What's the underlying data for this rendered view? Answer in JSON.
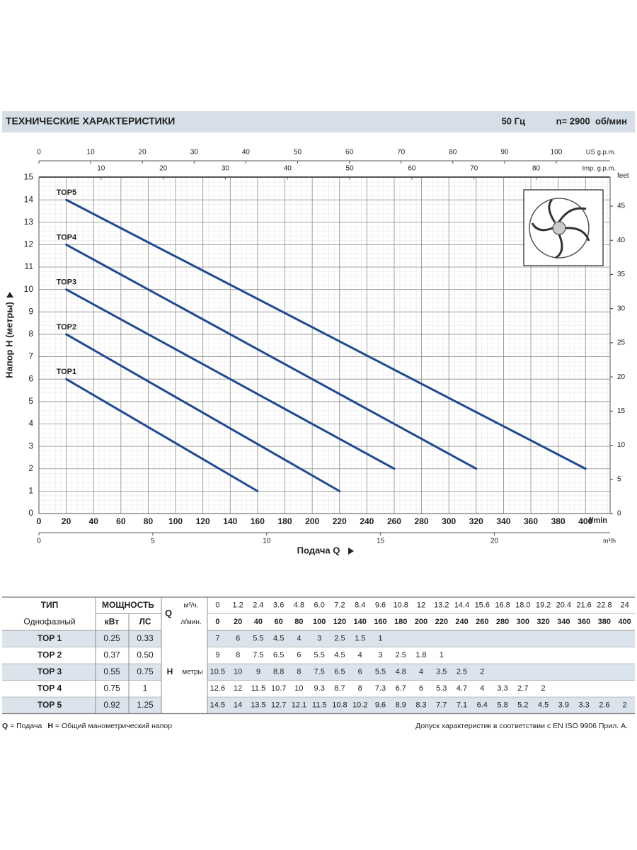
{
  "header": {
    "title": "ТЕХНИЧЕСКИЕ ХАРАКТЕРИСТИКИ",
    "frequency": "50 Гц",
    "speed": "n= 2900  об/мин"
  },
  "chart_data": {
    "type": "line",
    "ylabel": "Напор H (метры)",
    "xlabel": "Подача Q",
    "xunit": "l/min",
    "xlim": [
      0,
      418
    ],
    "xticks": [
      0,
      20,
      40,
      60,
      80,
      100,
      120,
      140,
      160,
      180,
      200,
      220,
      240,
      260,
      280,
      300,
      320,
      340,
      360,
      380,
      400
    ],
    "ylim": [
      0,
      15
    ],
    "yticks": [
      0,
      1,
      2,
      3,
      4,
      5,
      6,
      7,
      8,
      9,
      10,
      11,
      12,
      13,
      14,
      15
    ],
    "y2label": "feet",
    "y2lim": [
      0,
      49.2
    ],
    "y2ticks": [
      0,
      5,
      10,
      15,
      20,
      25,
      30,
      35,
      40,
      45
    ],
    "top_axes": [
      {
        "label": "US g.p.m.",
        "lim": [
          0,
          110.4
        ],
        "ticks": [
          0,
          10,
          20,
          30,
          40,
          50,
          60,
          70,
          80,
          90,
          100
        ]
      },
      {
        "label": "Imp. g.p.m.",
        "lim": [
          0,
          91.9
        ],
        "ticks": [
          10,
          20,
          30,
          40,
          50,
          60,
          70,
          80
        ]
      }
    ],
    "bottom_axis": {
      "label": "m³/h",
      "lim": [
        0,
        25.08
      ],
      "ticks": [
        0,
        5,
        10,
        15,
        20
      ]
    },
    "grid": true,
    "series": [
      {
        "name": "TOP1",
        "color": "#1d4a92",
        "x": [
          20,
          160
        ],
        "values": [
          6,
          1
        ]
      },
      {
        "name": "TOP2",
        "color": "#1d4a92",
        "x": [
          20,
          220
        ],
        "values": [
          8,
          1
        ]
      },
      {
        "name": "TOP3",
        "color": "#1d4a92",
        "x": [
          20,
          260
        ],
        "values": [
          10,
          2
        ]
      },
      {
        "name": "TOP4",
        "color": "#1d4a92",
        "x": [
          20,
          320
        ],
        "values": [
          12,
          2
        ]
      },
      {
        "name": "TOP5",
        "color": "#1d4a92",
        "x": [
          20,
          400
        ],
        "values": [
          14,
          2
        ]
      }
    ]
  },
  "table": {
    "headers": {
      "type": "ТИП",
      "subtype": "Однофазный",
      "power": "МОЩНОСТЬ",
      "kw": "кВт",
      "hp": "ЛС",
      "q": "Q",
      "q_unit_m3h": "м³/ч.",
      "q_unit_lpm": "л/мин.",
      "h": "H",
      "h_unit": "метры"
    },
    "q_m3h": [
      "0",
      "1.2",
      "2.4",
      "3.6",
      "4.8",
      "6.0",
      "7.2",
      "8.4",
      "9.6",
      "10.8",
      "12",
      "13.2",
      "14.4",
      "15.6",
      "16.8",
      "18.0",
      "19.2",
      "20.4",
      "21.6",
      "22.8",
      "24"
    ],
    "q_lpm": [
      "0",
      "20",
      "40",
      "60",
      "80",
      "100",
      "120",
      "140",
      "160",
      "180",
      "200",
      "220",
      "240",
      "260",
      "280",
      "300",
      "320",
      "340",
      "360",
      "380",
      "400"
    ],
    "rows": [
      {
        "name": "TOP 1",
        "kw": "0.25",
        "hp": "0.33",
        "h": [
          "7",
          "6",
          "5.5",
          "4.5",
          "4",
          "3",
          "2.5",
          "1.5",
          "1"
        ]
      },
      {
        "name": "TOP 2",
        "kw": "0.37",
        "hp": "0.50",
        "h": [
          "9",
          "8",
          "7.5",
          "6.5",
          "6",
          "5.5",
          "4.5",
          "4",
          "3",
          "2.5",
          "1.8",
          "1"
        ]
      },
      {
        "name": "TOP 3",
        "kw": "0.55",
        "hp": "0.75",
        "h": [
          "10.5",
          "10",
          "9",
          "8.8",
          "8",
          "7.5",
          "6.5",
          "6",
          "5.5",
          "4.8",
          "4",
          "3.5",
          "2.5",
          "2"
        ]
      },
      {
        "name": "TOP 4",
        "kw": "0.75",
        "hp": "1",
        "h": [
          "12.6",
          "12",
          "11.5",
          "10.7",
          "10",
          "9.3",
          "8.7",
          "8",
          "7.3",
          "6.7",
          "6",
          "5.3",
          "4.7",
          "4",
          "3.3",
          "2.7",
          "2"
        ]
      },
      {
        "name": "TOP 5",
        "kw": "0.92",
        "hp": "1.25",
        "h": [
          "14.5",
          "14",
          "13.5",
          "12.7",
          "12.1",
          "11.5",
          "10.8",
          "10.2",
          "9.6",
          "8.9",
          "8.3",
          "7.7",
          "7.1",
          "6.4",
          "5.8",
          "5.2",
          "4.5",
          "3.9",
          "3.3",
          "2.6",
          "2"
        ]
      }
    ]
  },
  "footer": {
    "q_symbol": "Q",
    "q_text": " = Подача",
    "h_symbol": "H",
    "h_text": " = Общий манометрический напор",
    "note": "Допуск характеристик в соответствии с EN ISO 9906 Прил. A."
  }
}
